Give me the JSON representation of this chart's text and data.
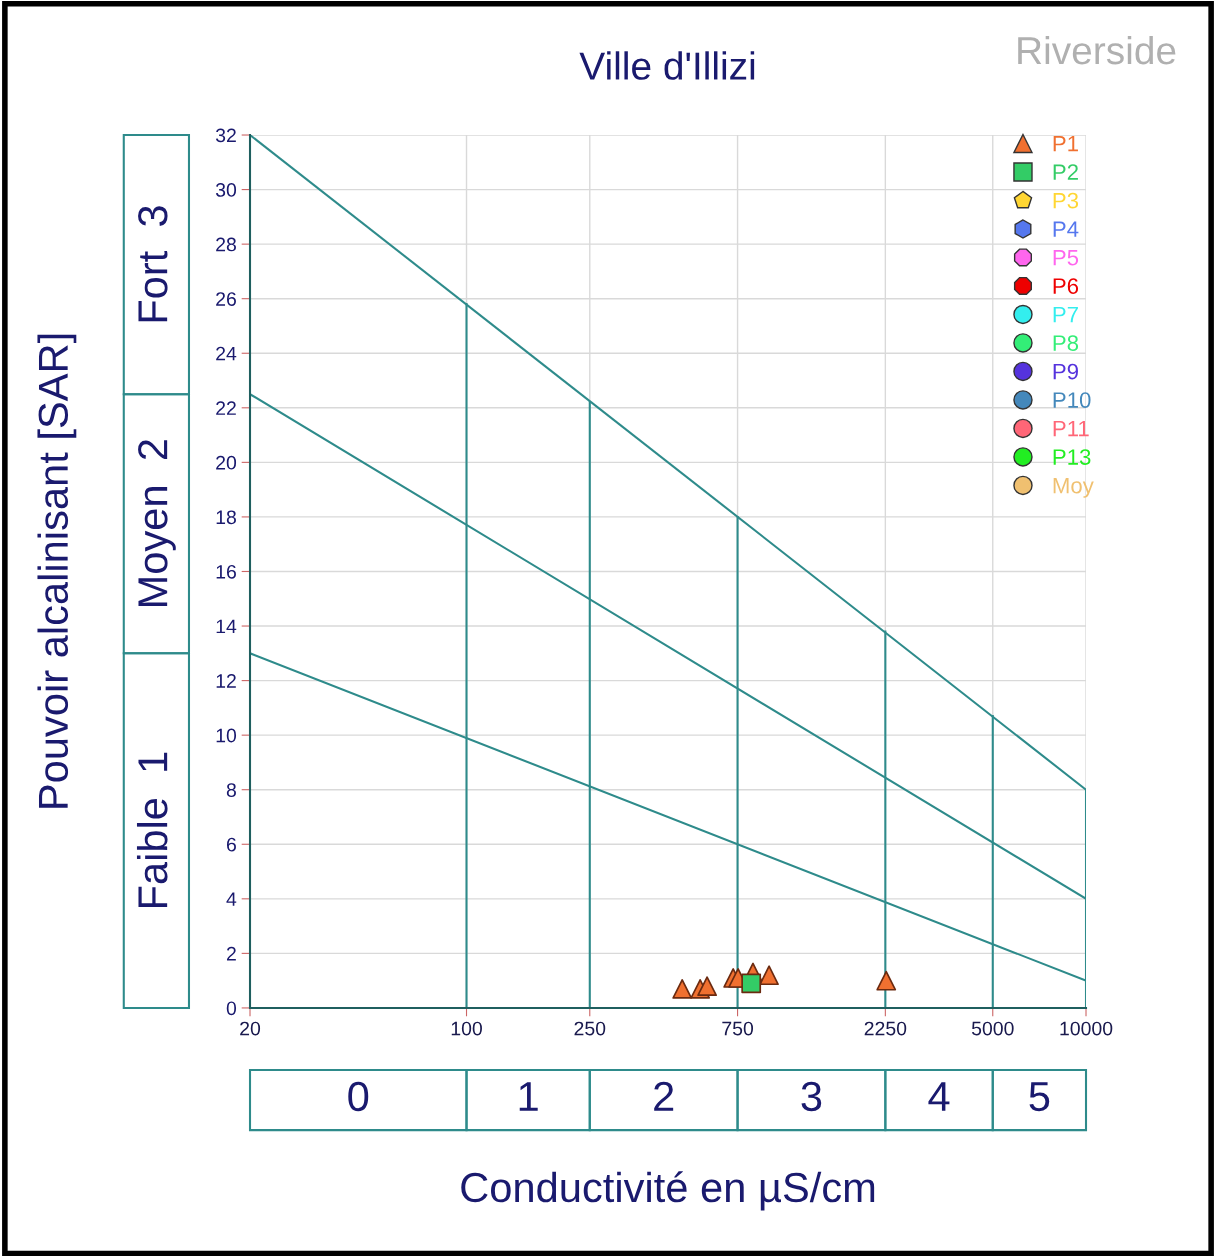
{
  "chart_data": {
    "type": "scatter",
    "title": "Ville d'Illizi",
    "xlabel": "Conductivité en µS/cm",
    "ylabel": "Pouvoir alcalinisant [SAR]",
    "annotations": [
      "Riverside",
      "Faible  1",
      "Moyen  2",
      "Fort  3",
      "0",
      "1",
      "2",
      "3",
      "4",
      "5"
    ],
    "log": "x",
    "xlim": [
      20,
      10000
    ],
    "xticks": [
      20,
      100,
      250,
      750,
      2250,
      5000,
      10000
    ],
    "ylim": [
      0,
      32
    ],
    "yticks": [
      0,
      2,
      4,
      6,
      8,
      10,
      12,
      14,
      16,
      18,
      20,
      22,
      24,
      26,
      28,
      30,
      32
    ],
    "grid": true,
    "legend": "top right",
    "series": [
      {
        "type": "line",
        "color": "#2e8b8b",
        "x": [
          20,
          10000
        ],
        "values": [
          32,
          8
        ]
      },
      {
        "type": "line",
        "color": "#2e8b8b",
        "x": [
          20,
          10000
        ],
        "values": [
          22.5,
          4
        ]
      },
      {
        "type": "line",
        "color": "#2e8b8b",
        "x": [
          20,
          10000
        ],
        "values": [
          13,
          1
        ]
      },
      {
        "type": "line",
        "color": "#2e8b8b",
        "x": [
          100,
          100
        ],
        "values": [
          0,
          25.8
        ]
      },
      {
        "type": "line",
        "color": "#2e8b8b",
        "x": [
          250,
          250
        ],
        "values": [
          0,
          22.2
        ]
      },
      {
        "type": "line",
        "color": "#2e8b8b",
        "x": [
          750,
          750
        ],
        "values": [
          0,
          18
        ]
      },
      {
        "type": "line",
        "color": "#2e8b8b",
        "x": [
          2250,
          2250
        ],
        "values": [
          0,
          13.8
        ]
      },
      {
        "type": "line",
        "color": "#2e8b8b",
        "x": [
          5000,
          5000
        ],
        "values": [
          0,
          10.7
        ]
      },
      {
        "type": "line",
        "color": "#2e8b8b",
        "x": [
          10000,
          10000
        ],
        "values": [
          0,
          8
        ]
      },
      {
        "name": "P1",
        "color": "#f07030",
        "marker": "triangle",
        "x": [
          497,
          568,
          598,
          726,
          753,
          841,
          948,
          2265
        ],
        "values": [
          0.7,
          0.7,
          0.8,
          1.1,
          1.1,
          1.3,
          1.2,
          1.0
        ]
      },
      {
        "name": "P2",
        "color": "#33cc66",
        "marker": "square",
        "x": [
          830
        ],
        "values": [
          0.9
        ]
      },
      {
        "name": "P3",
        "color": "#ffd633",
        "marker": "pentagon"
      },
      {
        "name": "P4",
        "color": "#5577ee",
        "marker": "hexagon"
      },
      {
        "name": "P5",
        "color": "#ff66ee",
        "marker": "octagon"
      },
      {
        "name": "P6",
        "color": "#ee0000",
        "marker": "octagon"
      },
      {
        "name": "P7",
        "color": "#33eeee",
        "marker": "circle"
      },
      {
        "name": "P8",
        "color": "#33ee77",
        "marker": "circle"
      },
      {
        "name": "P9",
        "color": "#5533dd",
        "marker": "circle"
      },
      {
        "name": "P10",
        "color": "#4488bb",
        "marker": "circle"
      },
      {
        "name": "P11",
        "color": "#ff6677",
        "marker": "circle"
      },
      {
        "name": "P13",
        "color": "#22ee22",
        "marker": "circle"
      },
      {
        "name": "Moy",
        "color": "#f0c070",
        "marker": "circle"
      }
    ]
  }
}
